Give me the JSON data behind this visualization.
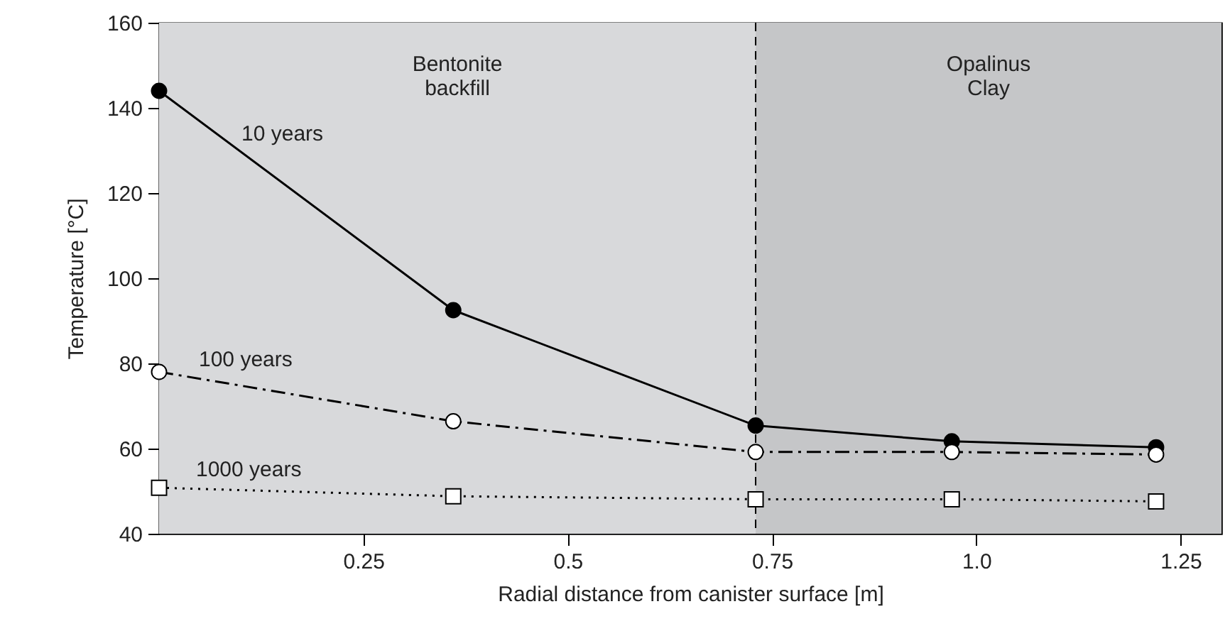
{
  "chart_data": {
    "type": "line",
    "xlabel": "Radial distance from canister surface [m]",
    "ylabel": "Temperature [°C]",
    "x": [
      0,
      0.36,
      0.73,
      0.97,
      1.22
    ],
    "xlim": [
      0,
      1.3
    ],
    "xticks": [
      0.25,
      0.5,
      0.75,
      {
        "value": 1,
        "label": "1.0"
      },
      1.25
    ],
    "ylim": [
      40,
      160
    ],
    "yticks": [
      40,
      60,
      80,
      100,
      120,
      140,
      160
    ],
    "series": [
      {
        "name": "10 years",
        "color": "#000000",
        "values": [
          144,
          92.5,
          65.4,
          61.7,
          60.3
        ],
        "marker": "circle",
        "line_style": "solid"
      },
      {
        "name": "100 years",
        "color": "#000000",
        "values": [
          78,
          66.4,
          59.2,
          59.2,
          58.6
        ],
        "marker": "circle",
        "line_style": "dashdot"
      },
      {
        "name": "1000 years",
        "color": "#000000",
        "values": [
          50.8,
          48.8,
          48.1,
          48.1,
          47.6
        ],
        "marker": "square",
        "line_style": "dotted"
      }
    ],
    "ref_lines": [
      {
        "axis": "x",
        "value": 0.73,
        "color": "#000000",
        "line_style": "dashed"
      }
    ],
    "bands": [
      {
        "axis": "x",
        "from": 0,
        "to": 0.73,
        "label": "Bentonite backfill",
        "color": "#d8d9db"
      },
      {
        "axis": "x",
        "from": 0.73,
        "to": 1.3,
        "label": "Opalinus Clay",
        "color": "#c5c6c8"
      }
    ]
  }
}
